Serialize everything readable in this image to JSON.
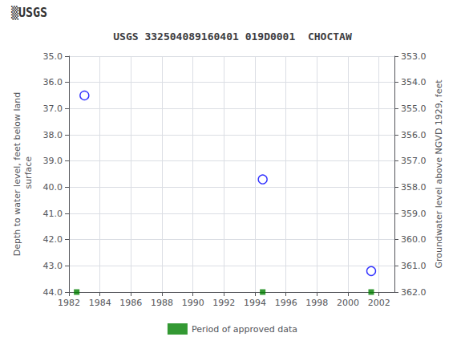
{
  "chart_data": {
    "type": "scatter",
    "title": "USGS 332504089160401 019D0001  CHOCTAW",
    "annotations": [
      "▒USGS"
    ],
    "ylabel": "Depth to water level, feet below land\n surface",
    "y2label": "Groundwater level above NGVD 1929, feet",
    "xlim": [
      1982,
      2003
    ],
    "xticks": [
      1982,
      1984,
      1986,
      1988,
      1990,
      1992,
      1994,
      1996,
      1998,
      2000,
      2002
    ],
    "ylim": [
      44.0,
      35.0
    ],
    "yticks": [
      {
        "value": 35.0,
        "label": "35.0"
      },
      {
        "value": 36.0,
        "label": "36.0"
      },
      {
        "value": 37.0,
        "label": "37.0"
      },
      {
        "value": 38.0,
        "label": "38.0"
      },
      {
        "value": 39.0,
        "label": "39.0"
      },
      {
        "value": 40.0,
        "label": "40.0"
      },
      {
        "value": 41.0,
        "label": "41.0"
      },
      {
        "value": 42.0,
        "label": "42.0"
      },
      {
        "value": 43.0,
        "label": "43.0"
      },
      {
        "value": 44.0,
        "label": "44.0"
      }
    ],
    "y2lim": [
      362.0,
      353.0
    ],
    "y2ticks": [
      {
        "value": 353.0,
        "label": "353.0"
      },
      {
        "value": 354.0,
        "label": "354.0"
      },
      {
        "value": 355.0,
        "label": "355.0"
      },
      {
        "value": 356.0,
        "label": "356.0"
      },
      {
        "value": 357.0,
        "label": "357.0"
      },
      {
        "value": 358.0,
        "label": "358.0"
      },
      {
        "value": 359.0,
        "label": "359.0"
      },
      {
        "value": 360.0,
        "label": "360.0"
      },
      {
        "value": 361.0,
        "label": "361.0"
      },
      {
        "value": 362.0,
        "label": "362.0"
      }
    ],
    "grid": true,
    "legend": "bottom",
    "series": [
      {
        "marker": "open_circle",
        "color": "blue",
        "x": [
          1983.0,
          1994.5,
          2001.5
        ],
        "values": [
          36.5,
          39.7,
          43.2
        ]
      },
      {
        "name": "Period of approved data",
        "marker": "square",
        "color": "#008000",
        "x": [
          1982.5,
          1994.5,
          2001.5
        ],
        "values": [
          44.0,
          44.0,
          44.0
        ]
      }
    ]
  }
}
